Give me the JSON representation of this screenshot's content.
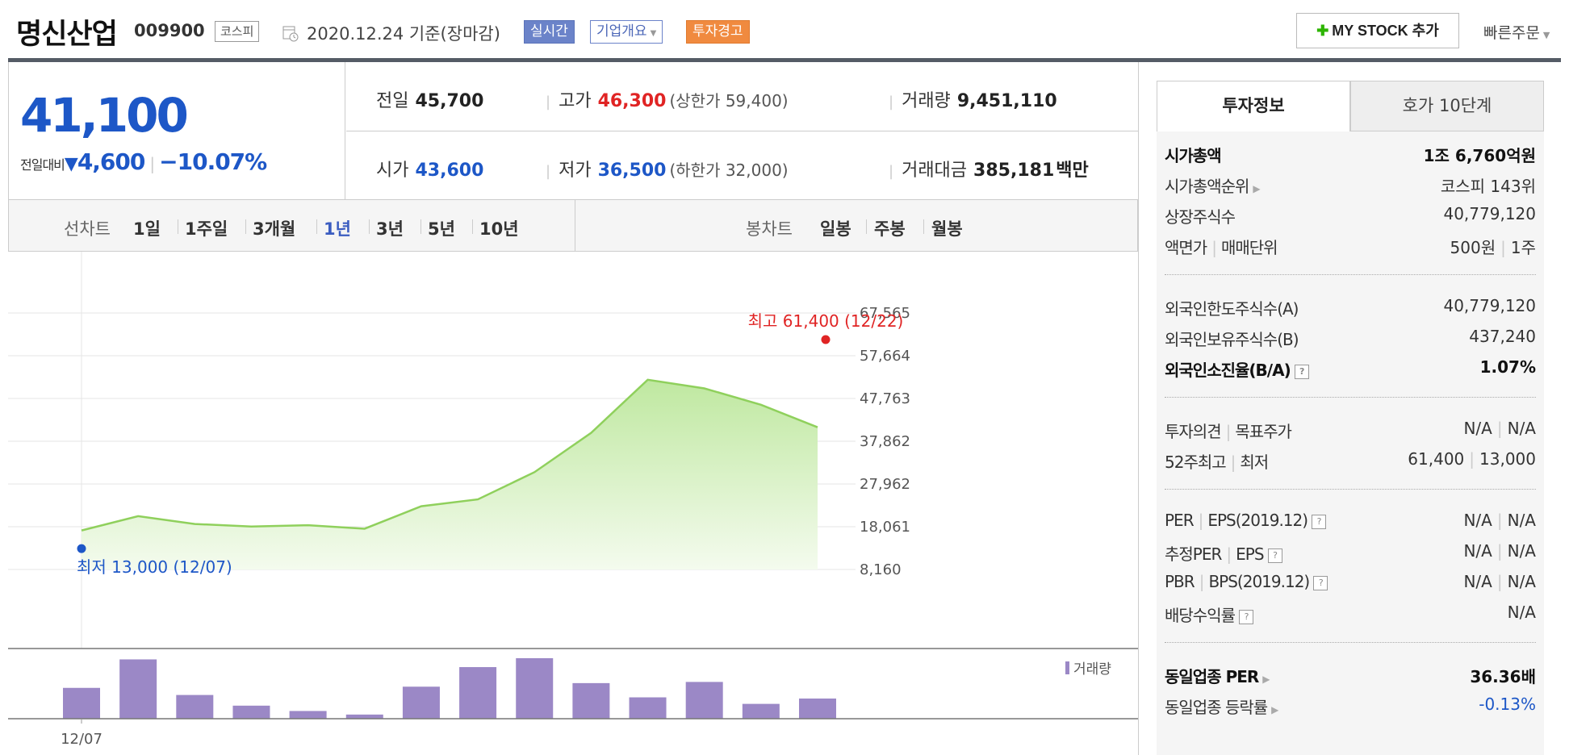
{
  "header": {
    "company_name": "명신산업",
    "code": "009900",
    "market": "코스피",
    "date": "2020.12.24 기준(장마감)",
    "realtime_label": "실시간",
    "company_info_label": "기업개요",
    "warning_label": "투자경고",
    "mystock_label": "MY STOCK 추가",
    "quick_order_label": "빠른주문"
  },
  "summary": {
    "price": "41,100",
    "compare_label": "전일대비",
    "change": "4,600",
    "change_rate": "−10.07%",
    "prev_label": "전일",
    "prev": "45,700",
    "high_label": "고가",
    "high": "46,300",
    "upper_limit": "(상한가 59,400)",
    "volume_label": "거래량",
    "volume": "9,451,110",
    "open_label": "시가",
    "open": "43,600",
    "low_label": "저가",
    "low": "36,500",
    "lower_limit": "(하한가 32,000)",
    "amount_label": "거래대금",
    "amount": "385,181",
    "amount_unit": "백만"
  },
  "periods": {
    "line_label": "선차트",
    "line_options": [
      "1일",
      "1주일",
      "3개월",
      "1년",
      "3년",
      "5년",
      "10년"
    ],
    "selected": "1년",
    "candle_label": "봉차트",
    "candle_options": [
      "일봉",
      "주봉",
      "월봉"
    ]
  },
  "chart_data": {
    "type": "area",
    "y_ticks": [
      "67,565",
      "57,664",
      "47,763",
      "37,862",
      "27,962",
      "18,061",
      "8,160"
    ],
    "ylim": [
      8160,
      67565
    ],
    "x_label": "12/07",
    "values": [
      17200,
      20500,
      18700,
      18100,
      18400,
      17600,
      22800,
      24400,
      30700,
      39800,
      52100,
      50100,
      46300,
      41100
    ],
    "max_annotation": "최고 61,400 (12/22)",
    "max_value": 61400,
    "min_annotation": "최저 13,000 (12/07)",
    "min_value": 13000,
    "volume_label": "거래량",
    "volume_values": [
      52,
      100,
      40,
      22,
      13,
      7,
      54,
      87,
      102,
      60,
      36,
      62,
      25,
      34
    ],
    "colors": {
      "line": "#8fd05c",
      "fill_top": "#bfe8a0",
      "fill_bottom": "#f4fbee",
      "volume": "#9b88c6",
      "max": "#e02424",
      "min": "#1d57c7"
    }
  },
  "right_panel": {
    "tab_active": "투자정보",
    "tab_inactive": "호가 10단계",
    "market_cap_label": "시가총액",
    "market_cap_num1": "1조",
    "market_cap_num2": "6,760",
    "market_cap_unit": "억원",
    "cap_rank_label": "시가총액순위",
    "cap_rank": "코스피 143위",
    "shares_label": "상장주식수",
    "shares": "40,779,120",
    "par_label": "액면가",
    "unit_label": "매매단위",
    "par": "500원",
    "unit": "1주",
    "foreign_limit_label": "외국인한도주식수(A)",
    "foreign_limit": "40,779,120",
    "foreign_hold_label": "외국인보유주식수(B)",
    "foreign_hold": "437,240",
    "foreign_rate_label": "외국인소진율(B/A)",
    "foreign_rate": "1.07%",
    "opinion_label": "투자의견",
    "target_label": "목표주가",
    "opinion": "N/A",
    "target": "N/A",
    "w52_label": "52주최고",
    "w52_low_label": "최저",
    "w52_high": "61,400",
    "w52_low": "13,000",
    "per_label": "PER",
    "eps_label": "EPS(2019.12)",
    "per": "N/A",
    "eps": "N/A",
    "est_per_label": "추정PER",
    "est_eps_label": "EPS",
    "est_per": "N/A",
    "est_eps": "N/A",
    "pbr_label": "PBR",
    "bps_label": "BPS(2019.12)",
    "pbr": "N/A",
    "bps": "N/A",
    "dividend_label": "배당수익률",
    "dividend": "N/A",
    "sector_per_label": "동일업종 PER",
    "sector_per": "36.36배",
    "sector_rate_label": "동일업종 등락률",
    "sector_rate": "-0.13%",
    "question_mark": "?"
  }
}
